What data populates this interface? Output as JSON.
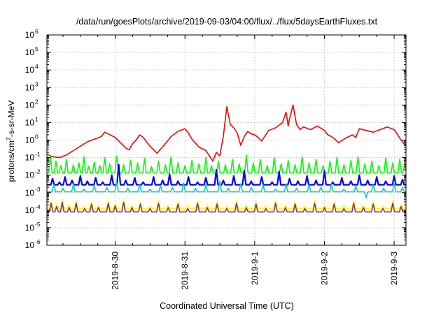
{
  "chart_data": {
    "type": "line",
    "title": "/data/run/goesPlots/archive/2019-09-03/04:00/flux/../flux/5daysEarthFluxes.txt",
    "xlabel": "Coordinated Universal Time (UTC)",
    "ylabel": "protons/cm2-s-sr-MeV",
    "ylabel_parts": [
      "protons/cm",
      "2",
      "-s-sr-MeV"
    ],
    "yscale": "log",
    "ylim_exp": [
      -6,
      6
    ],
    "ytick_base": "10",
    "ytick_exponents": [
      "-6",
      "-5",
      "-4",
      "-3",
      "-2",
      "-1",
      "0",
      "1",
      "2",
      "3",
      "4",
      "5",
      "6"
    ],
    "xlim_days": [
      -0.98,
      4.17
    ],
    "xticks": [
      {
        "day": 0,
        "label": "2019-8-30"
      },
      {
        "day": 1,
        "label": "2019-8-31"
      },
      {
        "day": 2,
        "label": "2019-9-1"
      },
      {
        "day": 3,
        "label": "2019-9-2"
      },
      {
        "day": 4,
        "label": "2019-9-3"
      }
    ],
    "grid": true,
    "series": [
      {
        "color": "#ff0000",
        "width": 1.6,
        "points": [
          [
            -0.98,
            -0.8
          ],
          [
            -0.9,
            -0.95
          ],
          [
            -0.8,
            -1.0
          ],
          [
            -0.7,
            -0.85
          ],
          [
            -0.6,
            -0.6
          ],
          [
            -0.5,
            -0.35
          ],
          [
            -0.4,
            -0.1
          ],
          [
            -0.3,
            0.05
          ],
          [
            -0.2,
            0.2
          ],
          [
            -0.15,
            0.45
          ],
          [
            -0.1,
            0.35
          ],
          [
            -0.05,
            0.25
          ],
          [
            0.0,
            0.15
          ],
          [
            0.05,
            -0.05
          ],
          [
            0.1,
            -0.25
          ],
          [
            0.15,
            -0.45
          ],
          [
            0.2,
            -0.55
          ],
          [
            0.25,
            -0.2
          ],
          [
            0.3,
            0.0
          ],
          [
            0.35,
            0.3
          ],
          [
            0.4,
            0.15
          ],
          [
            0.5,
            -0.35
          ],
          [
            0.6,
            -0.75
          ],
          [
            0.7,
            -0.3
          ],
          [
            0.8,
            0.2
          ],
          [
            0.9,
            0.5
          ],
          [
            1.0,
            0.65
          ],
          [
            1.05,
            0.4
          ],
          [
            1.1,
            0.05
          ],
          [
            1.2,
            -0.4
          ],
          [
            1.3,
            -0.6
          ],
          [
            1.4,
            -1.2
          ],
          [
            1.45,
            -0.7
          ],
          [
            1.5,
            -0.9
          ],
          [
            1.55,
            0.2
          ],
          [
            1.6,
            1.9
          ],
          [
            1.65,
            0.9
          ],
          [
            1.7,
            0.7
          ],
          [
            1.75,
            0.4
          ],
          [
            1.8,
            -0.3
          ],
          [
            1.85,
            0.2
          ],
          [
            1.9,
            0.5
          ],
          [
            1.95,
            0.35
          ],
          [
            2.0,
            0.3
          ],
          [
            2.05,
            0.15
          ],
          [
            2.1,
            -0.05
          ],
          [
            2.15,
            0.25
          ],
          [
            2.2,
            0.55
          ],
          [
            2.3,
            0.7
          ],
          [
            2.4,
            1.0
          ],
          [
            2.45,
            1.6
          ],
          [
            2.48,
            0.8
          ],
          [
            2.5,
            1.2
          ],
          [
            2.55,
            2.0
          ],
          [
            2.6,
            0.9
          ],
          [
            2.65,
            0.6
          ],
          [
            2.7,
            0.75
          ],
          [
            2.8,
            0.6
          ],
          [
            2.9,
            0.8
          ],
          [
            3.0,
            0.55
          ],
          [
            3.05,
            0.3
          ],
          [
            3.1,
            0.2
          ],
          [
            3.15,
            0.05
          ],
          [
            3.2,
            -0.15
          ],
          [
            3.3,
            0.1
          ],
          [
            3.4,
            0.3
          ],
          [
            3.45,
            0.15
          ],
          [
            3.5,
            0.65
          ],
          [
            3.6,
            0.55
          ],
          [
            3.7,
            0.45
          ],
          [
            3.8,
            0.6
          ],
          [
            3.9,
            0.75
          ],
          [
            4.0,
            0.6
          ],
          [
            4.05,
            0.3
          ],
          [
            4.1,
            0.0
          ],
          [
            4.17,
            -0.35
          ]
        ]
      },
      {
        "color": "#00ff00",
        "width": 1.6,
        "base": -1.88,
        "spikes": [
          [
            -0.93,
            -0.9
          ],
          [
            -0.85,
            -1.2
          ],
          [
            -0.78,
            -1.45
          ],
          [
            -0.7,
            -1.1
          ],
          [
            -0.6,
            -1.4
          ],
          [
            -0.52,
            -1.3
          ],
          [
            -0.45,
            -0.95
          ],
          [
            -0.38,
            -1.5
          ],
          [
            -0.3,
            -1.25
          ],
          [
            -0.22,
            -1.45
          ],
          [
            -0.15,
            -1.0
          ],
          [
            -0.08,
            -1.35
          ],
          [
            0.02,
            -0.9
          ],
          [
            0.12,
            -1.4
          ],
          [
            0.22,
            -1.15
          ],
          [
            0.32,
            -1.3
          ],
          [
            0.42,
            -1.05
          ],
          [
            0.52,
            -1.5
          ],
          [
            0.62,
            -1.2
          ],
          [
            0.72,
            -1.4
          ],
          [
            0.8,
            -0.95
          ],
          [
            0.9,
            -1.3
          ],
          [
            1.0,
            -1.45
          ],
          [
            1.1,
            -1.15
          ],
          [
            1.2,
            -1.35
          ],
          [
            1.3,
            -1.0
          ],
          [
            1.38,
            -1.45
          ],
          [
            1.48,
            -1.2
          ],
          [
            1.58,
            -1.4
          ],
          [
            1.68,
            -1.1
          ],
          [
            1.78,
            -1.35
          ],
          [
            1.88,
            -0.85
          ],
          [
            1.98,
            -1.3
          ],
          [
            2.08,
            -1.1
          ],
          [
            2.18,
            -1.45
          ],
          [
            2.28,
            -1.0
          ],
          [
            2.38,
            -1.35
          ],
          [
            2.48,
            -1.15
          ],
          [
            2.58,
            -1.4
          ],
          [
            2.68,
            -0.95
          ],
          [
            2.78,
            -1.3
          ],
          [
            2.88,
            -1.1
          ],
          [
            2.98,
            -1.45
          ],
          [
            3.08,
            -1.2
          ],
          [
            3.18,
            -1.0
          ],
          [
            3.28,
            -1.4
          ],
          [
            3.38,
            -1.15
          ],
          [
            3.48,
            -0.95
          ],
          [
            3.58,
            -1.35
          ],
          [
            3.68,
            -1.2
          ],
          [
            3.78,
            -1.45
          ],
          [
            3.88,
            -1.0
          ],
          [
            3.98,
            -1.3
          ],
          [
            4.08,
            -1.1
          ],
          [
            4.15,
            -1.35
          ]
        ]
      },
      {
        "color": "#0000ff",
        "width": 2.2,
        "base": -2.55,
        "spikes": [
          [
            -0.9,
            -2.2
          ],
          [
            -0.8,
            -2.4
          ],
          [
            -0.72,
            -2.1
          ],
          [
            -0.62,
            -2.3
          ],
          [
            -0.5,
            -2.05
          ],
          [
            -0.4,
            -2.35
          ],
          [
            -0.28,
            -2.15
          ],
          [
            -0.18,
            -2.4
          ],
          [
            -0.05,
            -2.0
          ],
          [
            0.05,
            -1.4
          ],
          [
            0.15,
            -2.3
          ],
          [
            0.28,
            -2.15
          ],
          [
            0.4,
            -2.4
          ],
          [
            0.55,
            -2.1
          ],
          [
            0.68,
            -2.3
          ],
          [
            0.78,
            -1.95
          ],
          [
            0.9,
            -2.35
          ],
          [
            1.05,
            -2.1
          ],
          [
            1.18,
            -2.4
          ],
          [
            1.3,
            -2.15
          ],
          [
            1.45,
            -1.7
          ],
          [
            1.55,
            -2.3
          ],
          [
            1.7,
            -2.05
          ],
          [
            1.85,
            -1.75
          ],
          [
            1.95,
            -2.35
          ],
          [
            2.1,
            -2.1
          ],
          [
            2.25,
            -2.4
          ],
          [
            2.35,
            -1.8
          ],
          [
            2.5,
            -2.2
          ],
          [
            2.62,
            -2.35
          ],
          [
            2.75,
            -2.05
          ],
          [
            2.88,
            -2.3
          ],
          [
            3.0,
            -1.75
          ],
          [
            3.12,
            -2.4
          ],
          [
            3.25,
            -2.15
          ],
          [
            3.38,
            -2.35
          ],
          [
            3.5,
            -2.0
          ],
          [
            3.62,
            -2.3
          ],
          [
            3.75,
            -2.1
          ],
          [
            3.88,
            -2.35
          ],
          [
            4.0,
            -2.05
          ],
          [
            4.12,
            -2.25
          ]
        ]
      },
      {
        "color": "#00d2b4",
        "width": 1.6,
        "base": -2.95,
        "spikes": [
          [
            -0.88,
            -2.55
          ],
          [
            -0.75,
            -2.75
          ],
          [
            -0.6,
            -2.5
          ],
          [
            -0.45,
            -2.8
          ],
          [
            -0.3,
            -2.6
          ],
          [
            -0.12,
            -2.7
          ],
          [
            0.02,
            -2.4
          ],
          [
            0.18,
            -2.75
          ],
          [
            0.35,
            -2.55
          ],
          [
            0.5,
            -2.8
          ],
          [
            0.65,
            -2.6
          ],
          [
            0.82,
            -2.7
          ],
          [
            0.98,
            -2.45
          ],
          [
            1.15,
            -2.75
          ],
          [
            1.3,
            -2.55
          ],
          [
            1.5,
            -2.35
          ],
          [
            1.62,
            -2.75
          ],
          [
            1.8,
            -2.5
          ],
          [
            1.95,
            -2.7
          ],
          [
            2.12,
            -2.55
          ],
          [
            2.3,
            -2.8
          ],
          [
            2.45,
            -2.5
          ],
          [
            2.6,
            -2.75
          ],
          [
            2.78,
            -2.55
          ],
          [
            2.95,
            -2.7
          ],
          [
            3.1,
            -2.5
          ],
          [
            3.28,
            -2.8
          ],
          [
            3.45,
            -2.6
          ],
          [
            3.6,
            -3.3
          ],
          [
            3.7,
            -2.55
          ],
          [
            3.85,
            -2.75
          ],
          [
            4.0,
            -2.5
          ],
          [
            4.12,
            -2.7
          ]
        ]
      },
      {
        "color": "#ffff00",
        "width": 1.5,
        "base": -3.9,
        "spikes": [
          [
            -0.92,
            -3.5
          ],
          [
            -0.84,
            -3.65
          ],
          [
            -0.76,
            -3.4
          ],
          [
            -0.66,
            -3.7
          ],
          [
            -0.56,
            -3.45
          ],
          [
            -0.44,
            -3.75
          ],
          [
            -0.34,
            -3.5
          ],
          [
            -0.24,
            -3.7
          ],
          [
            -0.1,
            -3.45
          ],
          [
            0.0,
            -3.6
          ],
          [
            0.12,
            -3.4
          ],
          [
            0.24,
            -3.7
          ],
          [
            0.36,
            -3.5
          ],
          [
            0.5,
            -3.75
          ],
          [
            0.62,
            -3.45
          ],
          [
            0.76,
            -3.7
          ],
          [
            0.9,
            -3.5
          ],
          [
            1.04,
            -3.72
          ],
          [
            1.18,
            -3.45
          ],
          [
            1.32,
            -3.68
          ],
          [
            1.46,
            -3.5
          ],
          [
            1.6,
            -3.75
          ],
          [
            1.74,
            -3.45
          ],
          [
            1.88,
            -3.7
          ],
          [
            2.02,
            -3.5
          ],
          [
            2.16,
            -3.72
          ],
          [
            2.3,
            -3.45
          ],
          [
            2.44,
            -3.7
          ],
          [
            2.58,
            -3.5
          ],
          [
            2.72,
            -3.75
          ],
          [
            2.86,
            -3.45
          ],
          [
            3.0,
            -3.7
          ],
          [
            3.14,
            -3.5
          ],
          [
            3.28,
            -3.72
          ],
          [
            3.42,
            -3.45
          ],
          [
            3.56,
            -3.7
          ],
          [
            3.7,
            -3.5
          ],
          [
            3.84,
            -3.75
          ],
          [
            3.98,
            -3.45
          ],
          [
            4.1,
            -3.65
          ]
        ]
      },
      {
        "color": "#8c2f78",
        "width": 1.6,
        "base": -4.1,
        "spikes": [
          [
            -0.92,
            -3.6
          ],
          [
            -0.84,
            -3.8
          ],
          [
            -0.76,
            -3.55
          ],
          [
            -0.66,
            -3.85
          ],
          [
            -0.56,
            -3.6
          ],
          [
            -0.44,
            -3.9
          ],
          [
            -0.34,
            -3.65
          ],
          [
            -0.24,
            -3.85
          ],
          [
            -0.1,
            -3.6
          ],
          [
            0.0,
            -3.75
          ],
          [
            0.12,
            -3.55
          ],
          [
            0.24,
            -3.85
          ],
          [
            0.36,
            -3.65
          ],
          [
            0.5,
            -3.9
          ],
          [
            0.62,
            -3.6
          ],
          [
            0.76,
            -3.85
          ],
          [
            0.9,
            -3.65
          ],
          [
            1.04,
            -3.9
          ],
          [
            1.18,
            -3.6
          ],
          [
            1.32,
            -3.85
          ],
          [
            1.46,
            -3.65
          ],
          [
            1.6,
            -3.9
          ],
          [
            1.74,
            -3.6
          ],
          [
            1.88,
            -3.85
          ],
          [
            2.02,
            -3.65
          ],
          [
            2.16,
            -3.9
          ],
          [
            2.3,
            -3.6
          ],
          [
            2.44,
            -3.85
          ],
          [
            2.58,
            -3.65
          ],
          [
            2.72,
            -3.9
          ],
          [
            2.86,
            -3.6
          ],
          [
            3.0,
            -3.85
          ],
          [
            3.14,
            -3.65
          ],
          [
            3.28,
            -3.9
          ],
          [
            3.42,
            -3.6
          ],
          [
            3.56,
            -3.85
          ],
          [
            3.7,
            -3.65
          ],
          [
            3.84,
            -3.9
          ],
          [
            3.98,
            -3.6
          ],
          [
            4.1,
            -3.8
          ]
        ]
      }
    ]
  }
}
